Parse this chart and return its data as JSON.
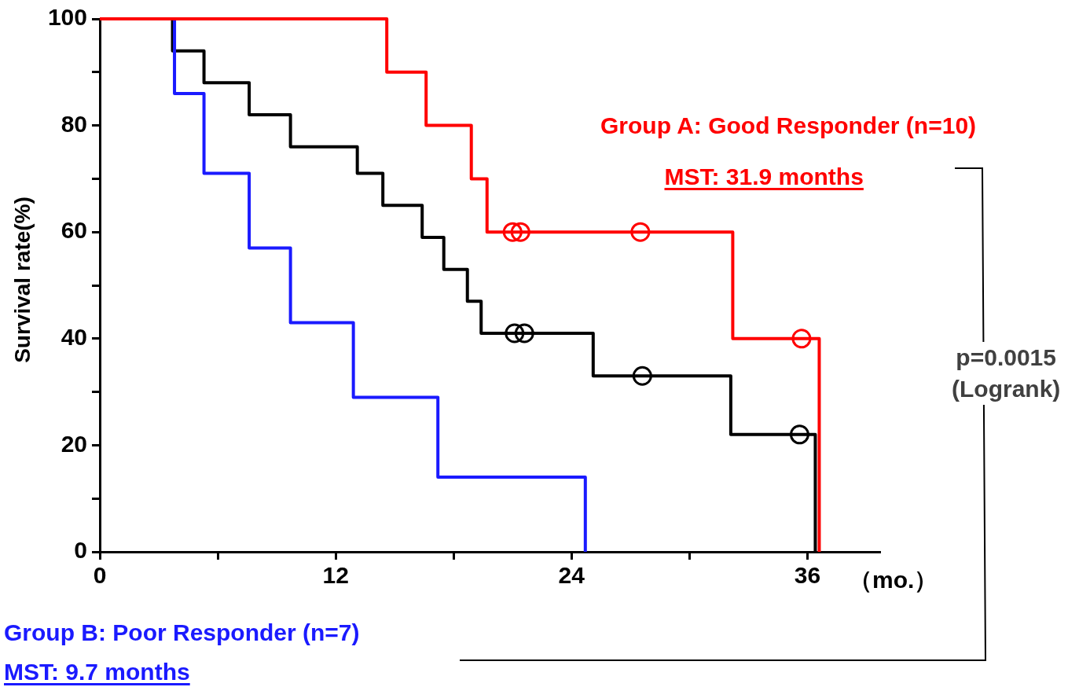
{
  "chart_data": {
    "type": "step",
    "ylabel": "Survival rate(%)",
    "xlabel": "（mo.）",
    "xlim": [
      0,
      39.7
    ],
    "xticks": [
      0,
      {
        "value": 6,
        "label": null
      },
      12,
      {
        "value": 18,
        "label": null
      },
      24,
      {
        "value": 30,
        "label": null
      },
      36
    ],
    "ylim": [
      0,
      100
    ],
    "yticks": [
      0,
      {
        "value": 10,
        "label": null
      },
      20,
      {
        "value": 30,
        "label": null
      },
      40,
      {
        "value": 50,
        "label": null
      },
      60,
      {
        "value": 70,
        "label": null
      },
      80,
      {
        "value": 90,
        "label": null
      },
      100
    ],
    "grid": false,
    "legend": false,
    "marker": "none",
    "line_style": "solid",
    "series": [
      {
        "color": "#000000",
        "x": [
          0,
          3.7,
          5.3,
          7.6,
          9.7,
          13.1,
          14.4,
          16.4,
          17.5,
          18.7,
          19.4,
          25.1,
          32.1,
          36.4
        ],
        "values": [
          100,
          94,
          88,
          82,
          76,
          71,
          65,
          59,
          53,
          47,
          41,
          33,
          22,
          0
        ]
      },
      {
        "name": "Group B: Poor Responder (n=7)",
        "color": "#1a1aff",
        "x": [
          0,
          3.8,
          5.3,
          7.6,
          9.7,
          12.9,
          17.2,
          24.7
        ],
        "values": [
          100,
          86,
          71,
          57,
          43,
          29,
          14,
          0
        ]
      },
      {
        "name": "Group A: Good Responder (n=10)",
        "color": "#ff0000",
        "x": [
          0,
          14.6,
          16.6,
          18.9,
          19.7,
          32.2,
          36.6
        ],
        "values": [
          100,
          90,
          80,
          70,
          60,
          40,
          0
        ]
      },
      {
        "type": "scatter",
        "marker": "circle",
        "color": "#000000",
        "x": [
          21.1,
          21.6,
          27.6,
          35.6
        ],
        "values": [
          41,
          41,
          33,
          22
        ]
      },
      {
        "type": "scatter",
        "marker": "circle",
        "color": "#ff0000",
        "x": [
          21.0,
          21.4,
          27.5,
          35.7
        ],
        "values": [
          60,
          60,
          60,
          40
        ]
      }
    ],
    "annotations": [
      "MST: 31.9 months",
      "MST: 9.7 months",
      "p=0.0015\n(Logrank)"
    ]
  }
}
